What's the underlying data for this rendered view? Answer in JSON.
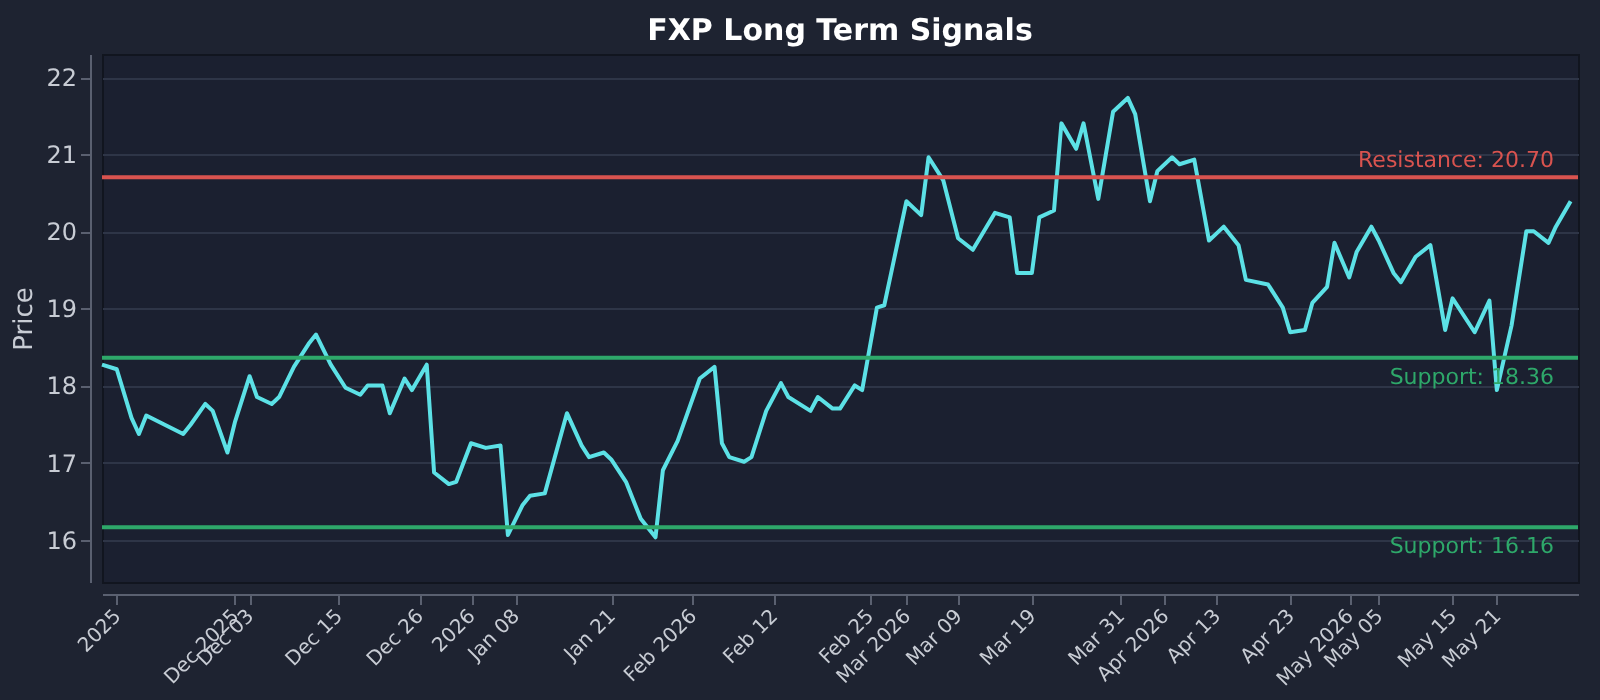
{
  "chart_data": {
    "type": "line",
    "title": "FXP Long Term Signals",
    "ylabel": "Price",
    "x": [
      "2025-11-13",
      "2025-11-15",
      "2025-11-17",
      "2025-11-18",
      "2025-11-19",
      "2025-11-24",
      "2025-11-25",
      "2025-11-27",
      "2025-11-28",
      "2025-11-30",
      "2025-12-01",
      "2025-12-03",
      "2025-12-04",
      "2025-12-06",
      "2025-12-07",
      "2025-12-09",
      "2025-12-11",
      "2025-12-12",
      "2025-12-14",
      "2025-12-16",
      "2025-12-18",
      "2025-12-19",
      "2025-12-21",
      "2025-12-22",
      "2025-12-24",
      "2025-12-25",
      "2025-12-27",
      "2025-12-28",
      "2025-12-30",
      "2025-12-31",
      "2026-01-02",
      "2026-01-04",
      "2026-01-06",
      "2026-01-07",
      "2026-01-09",
      "2026-01-10",
      "2026-01-12",
      "2026-01-15",
      "2026-01-17",
      "2026-01-18",
      "2026-01-20",
      "2026-01-21",
      "2026-01-23",
      "2026-01-25",
      "2026-01-27",
      "2026-01-28",
      "2026-01-30",
      "2026-02-02",
      "2026-02-04",
      "2026-02-05",
      "2026-02-06",
      "2026-02-08",
      "2026-02-09",
      "2026-02-11",
      "2026-02-13",
      "2026-02-14",
      "2026-02-17",
      "2026-02-18",
      "2026-02-20",
      "2026-02-21",
      "2026-02-23",
      "2026-02-24",
      "2026-02-26",
      "2026-02-27",
      "2026-02-28",
      "2026-03-02",
      "2026-03-04",
      "2026-03-05",
      "2026-03-07",
      "2026-03-09",
      "2026-03-11",
      "2026-03-14",
      "2026-03-16",
      "2026-03-17",
      "2026-03-19",
      "2026-03-20",
      "2026-03-22",
      "2026-03-23",
      "2026-03-25",
      "2026-03-26",
      "2026-03-28",
      "2026-03-30",
      "2026-04-01",
      "2026-04-02",
      "2026-04-04",
      "2026-04-05",
      "2026-04-07",
      "2026-04-08",
      "2026-04-10",
      "2026-04-12",
      "2026-04-13",
      "2026-04-14",
      "2026-04-16",
      "2026-04-17",
      "2026-04-20",
      "2026-04-22",
      "2026-04-23",
      "2026-04-25",
      "2026-04-26",
      "2026-04-28",
      "2026-04-29",
      "2026-05-01",
      "2026-05-02",
      "2026-05-04",
      "2026-05-05",
      "2026-05-07",
      "2026-05-08",
      "2026-05-10",
      "2026-05-12",
      "2026-05-14",
      "2026-05-15",
      "2026-05-18",
      "2026-05-20",
      "2026-05-21",
      "2026-05-23",
      "2026-05-25",
      "2026-05-26",
      "2026-05-28",
      "2026-05-29",
      "2026-05-31"
    ],
    "series": [
      {
        "color": "#5ce1e6",
        "values": [
          18.27,
          18.21,
          17.58,
          17.37,
          17.61,
          17.37,
          17.49,
          17.76,
          17.67,
          17.13,
          17.52,
          18.12,
          17.85,
          17.76,
          17.85,
          18.24,
          18.54,
          18.66,
          18.27,
          17.97,
          17.88,
          18.0,
          18.0,
          17.64,
          18.09,
          17.94,
          18.27,
          16.87,
          16.72,
          16.75,
          17.25,
          17.19,
          17.22,
          16.06,
          16.45,
          16.57,
          16.6,
          17.64,
          17.22,
          17.07,
          17.13,
          17.04,
          16.75,
          16.27,
          16.03,
          16.9,
          17.28,
          18.09,
          18.24,
          17.25,
          17.07,
          17.01,
          17.07,
          17.67,
          18.03,
          17.85,
          17.67,
          17.85,
          17.7,
          17.7,
          18.0,
          17.94,
          19.01,
          19.04,
          19.49,
          20.39,
          20.21,
          20.96,
          20.66,
          19.91,
          19.76,
          20.24,
          20.18,
          19.46,
          19.46,
          20.18,
          20.27,
          21.4,
          21.07,
          21.4,
          20.42,
          21.55,
          21.73,
          21.52,
          20.39,
          20.78,
          20.96,
          20.87,
          20.93,
          19.88,
          19.97,
          20.06,
          19.82,
          19.37,
          19.31,
          19.01,
          18.69,
          18.72,
          19.07,
          19.28,
          19.85,
          19.4,
          19.73,
          20.06,
          19.88,
          19.46,
          19.34,
          19.67,
          19.82,
          18.72,
          19.13,
          18.69,
          19.1,
          17.94,
          18.78,
          20.0,
          20.0,
          19.85,
          20.06,
          20.39
        ]
      }
    ],
    "xlim": [
      "2025-11-13",
      "2026-06-01"
    ],
    "xticks": [
      {
        "value": "2025-11-15",
        "label": "2025"
      },
      {
        "value": "2025-12-01",
        "label": "Dec 2025"
      },
      {
        "value": "2025-12-03",
        "label": "Dec 03"
      },
      {
        "value": "2025-12-15",
        "label": "Dec 15"
      },
      {
        "value": "2025-12-26",
        "label": "Dec 26"
      },
      {
        "value": "2026-01-02",
        "label": "2026"
      },
      {
        "value": "2026-01-08",
        "label": "Jan 08"
      },
      {
        "value": "2026-01-21",
        "label": "Jan 21"
      },
      {
        "value": "2026-02-01",
        "label": "Feb 2026"
      },
      {
        "value": "2026-02-12",
        "label": "Feb 12"
      },
      {
        "value": "2026-02-25",
        "label": "Feb 25"
      },
      {
        "value": "2026-03-02",
        "label": "Mar 2026"
      },
      {
        "value": "2026-03-09",
        "label": "Mar 09"
      },
      {
        "value": "2026-03-19",
        "label": "Mar 19"
      },
      {
        "value": "2026-03-31",
        "label": "Mar 31"
      },
      {
        "value": "2026-04-06",
        "label": "Apr 2026"
      },
      {
        "value": "2026-04-13",
        "label": "Apr 13"
      },
      {
        "value": "2026-04-23",
        "label": "Apr 23"
      },
      {
        "value": "2026-05-01",
        "label": "May 2026"
      },
      {
        "value": "2026-05-05",
        "label": "May 05"
      },
      {
        "value": "2026-05-15",
        "label": "May 15"
      },
      {
        "value": "2026-05-21",
        "label": "May 21"
      }
    ],
    "ylim": [
      15.45,
      22.3
    ],
    "yticks": [
      16,
      17,
      18,
      19,
      20,
      21,
      22
    ],
    "ref_lines": [
      {
        "axis": "y",
        "value": 20.7,
        "label": "Resistance: 20.70",
        "color": "#d9534f"
      },
      {
        "axis": "y",
        "value": 18.36,
        "label": "Support: 18.36",
        "color": "#2ea86a"
      },
      {
        "axis": "y",
        "value": 16.16,
        "label": "Support: 16.16",
        "color": "#2ea86a"
      }
    ],
    "grid": "y",
    "legend": false,
    "marker": "none",
    "line_style": "solid"
  }
}
